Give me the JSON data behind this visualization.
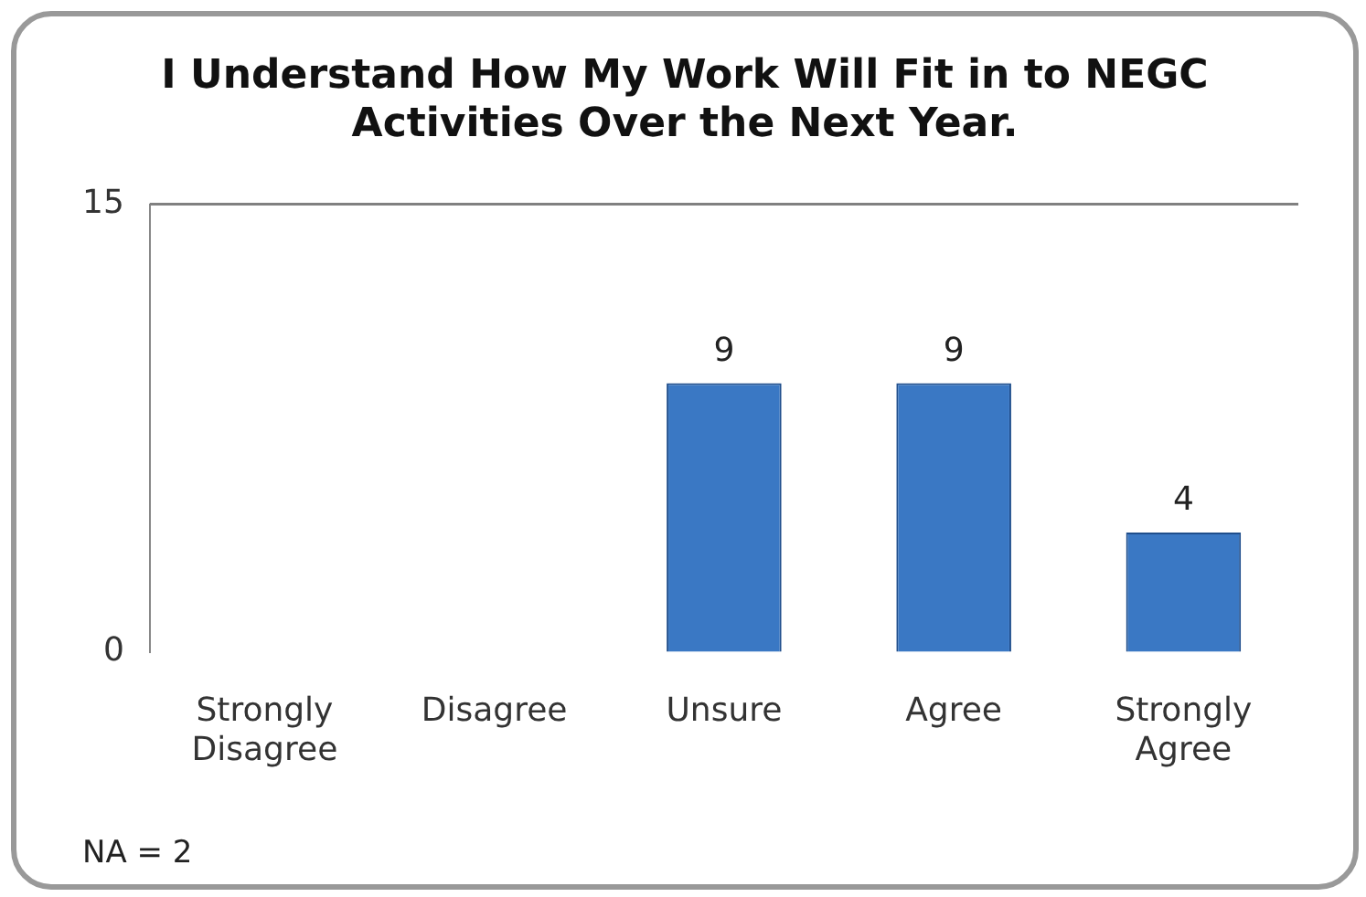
{
  "chart_data": {
    "type": "bar",
    "title": "I Understand How My Work Will Fit in to NEGC Activities Over the Next Year.",
    "categories": [
      "Strongly Disagree",
      "Disagree",
      "Unsure",
      "Agree",
      "Strongly Agree"
    ],
    "values": [
      0,
      0,
      9,
      9,
      4
    ],
    "color": "#3a78c4",
    "value_labels": [
      null,
      null,
      "9",
      "9",
      "4"
    ],
    "ylim": [
      0,
      15
    ],
    "yticks": [
      0,
      15
    ],
    "grid": false,
    "legend": false,
    "annotations": [
      "NA = 2"
    ]
  }
}
